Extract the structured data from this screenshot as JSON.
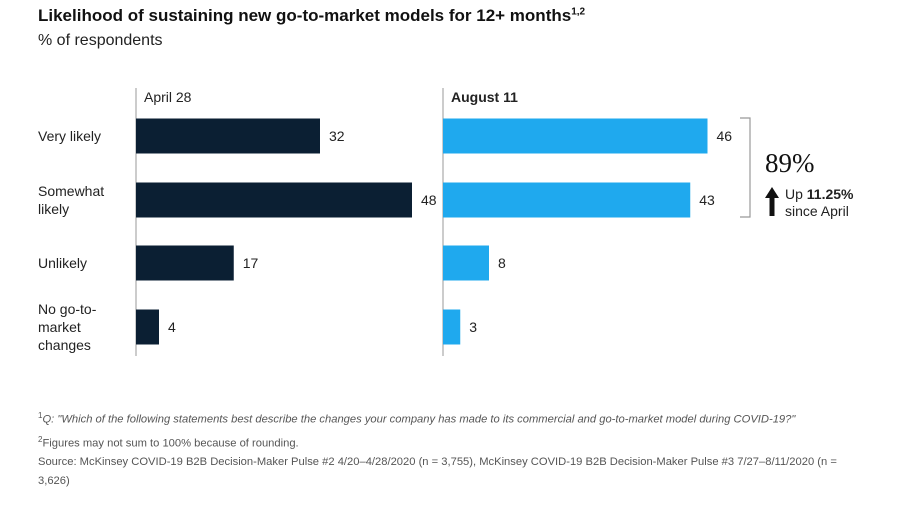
{
  "title": "Likelihood of sustaining new go-to-market models for 12+ months",
  "title_sup": "1,2",
  "subtitle": "% of respondents",
  "colors": {
    "april": "#0b1f33",
    "august": "#1fa9ee",
    "axis": "#999999",
    "text": "#222222"
  },
  "chart_data": {
    "type": "bar",
    "orientation": "horizontal",
    "title": "Likelihood of sustaining new go-to-market models for 12+ months",
    "categories": [
      [
        "Very likely"
      ],
      [
        "Somewhat",
        "likely"
      ],
      [
        "Unlikely"
      ],
      [
        "No go-to-",
        "market",
        "changes"
      ]
    ],
    "series": [
      {
        "name": "April 28",
        "values": [
          32,
          48,
          17,
          4
        ]
      },
      {
        "name": "August 11",
        "values": [
          46,
          43,
          8,
          3
        ]
      }
    ],
    "xlim": [
      0,
      50
    ],
    "callout": {
      "big": "89%",
      "line1_prefix": "Up ",
      "line1_value": "11.25%",
      "line2": "since April"
    }
  },
  "footnotes": {
    "note1_marker": "1",
    "note1_text": "Q: \"Which of the following statements best describe the changes your company has made to its commercial and go-to-market model during COVID-19?\"",
    "note2_marker": "2",
    "note2_text": "Figures may not sum to 100% because of rounding.",
    "source": "Source: McKinsey COVID-19 B2B Decision-Maker Pulse #2 4/20–4/28/2020 (n = 3,755), McKinsey COVID-19 B2B Decision-Maker Pulse #3 7/27–8/11/2020 (n = 3,626)"
  }
}
